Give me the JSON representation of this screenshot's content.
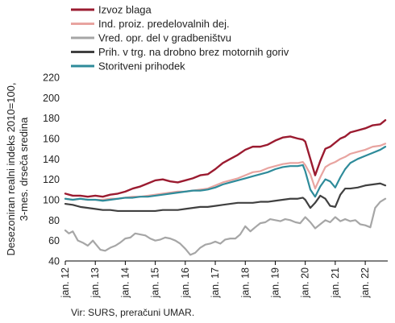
{
  "chart_data": {
    "type": "line",
    "ylabel_lines": [
      "Desezoniran realni indeks 2010=100,",
      "3-mes. drseča sredina"
    ],
    "ylim": [
      40,
      220
    ],
    "yticks": [
      40,
      60,
      80,
      100,
      120,
      140,
      160,
      180,
      200,
      220
    ],
    "xlim": [
      2012.0,
      2022.75
    ],
    "xtick_labels": [
      "jan. 12",
      "jan. 13",
      "jan. 14",
      "jan. 15",
      "jan. 16",
      "jan. 17",
      "jan. 18",
      "jan. 19",
      "jan. 20",
      "jan. 21",
      "jan. 22"
    ],
    "xtick_values": [
      2012,
      2013,
      2014,
      2015,
      2016,
      2017,
      2018,
      2019,
      2020,
      2021,
      2022
    ],
    "grid": false,
    "legend_position": "top-left, above plot",
    "source_note": "Vir: SURS, preračuni UMAR.",
    "series": [
      {
        "name": "Izvoz blaga",
        "color": "#9b1b30",
        "width": 2.4,
        "x": [
          2012.0,
          2012.25,
          2012.5,
          2012.75,
          2013.0,
          2013.25,
          2013.5,
          2013.75,
          2014.0,
          2014.25,
          2014.5,
          2014.75,
          2015.0,
          2015.25,
          2015.5,
          2015.75,
          2016.0,
          2016.25,
          2016.5,
          2016.75,
          2017.0,
          2017.25,
          2017.5,
          2017.75,
          2018.0,
          2018.25,
          2018.5,
          2018.75,
          2019.0,
          2019.25,
          2019.5,
          2019.75,
          2019.92,
          2020.0,
          2020.17,
          2020.33,
          2020.5,
          2020.67,
          2020.83,
          2021.0,
          2021.17,
          2021.33,
          2021.5,
          2021.75,
          2022.0,
          2022.25,
          2022.5,
          2022.67
        ],
        "y": [
          106,
          104,
          104,
          103,
          104,
          103,
          105,
          106,
          108,
          111,
          113,
          116,
          119,
          120,
          118,
          117,
          119,
          121,
          124,
          125,
          130,
          136,
          140,
          144,
          149,
          152,
          152,
          154,
          158,
          161,
          162,
          160,
          159,
          157,
          140,
          124,
          138,
          150,
          152,
          156,
          160,
          162,
          166,
          168,
          170,
          173,
          174,
          178
        ]
      },
      {
        "name": "Ind. proiz. predelovalnih dej.",
        "color": "#e8a4a0",
        "width": 2.2,
        "x": [
          2012.0,
          2012.25,
          2012.5,
          2012.75,
          2013.0,
          2013.25,
          2013.5,
          2013.75,
          2014.0,
          2014.25,
          2014.5,
          2014.75,
          2015.0,
          2015.25,
          2015.5,
          2015.75,
          2016.0,
          2016.25,
          2016.5,
          2016.75,
          2017.0,
          2017.25,
          2017.5,
          2017.75,
          2018.0,
          2018.25,
          2018.5,
          2018.75,
          2019.0,
          2019.25,
          2019.5,
          2019.75,
          2019.92,
          2020.0,
          2020.17,
          2020.33,
          2020.5,
          2020.67,
          2020.83,
          2021.0,
          2021.17,
          2021.33,
          2021.5,
          2021.75,
          2022.0,
          2022.25,
          2022.5,
          2022.67
        ],
        "y": [
          101,
          100,
          101,
          100,
          100,
          100,
          101,
          101,
          102,
          103,
          103,
          104,
          105,
          106,
          107,
          108,
          108,
          109,
          110,
          111,
          114,
          117,
          119,
          121,
          124,
          127,
          128,
          131,
          133,
          135,
          136,
          136,
          137,
          134,
          125,
          111,
          122,
          132,
          135,
          137,
          140,
          142,
          145,
          147,
          149,
          152,
          153,
          155
        ]
      },
      {
        "name": "Vred. opr. del v gradbeništvu",
        "color": "#a6a6a6",
        "width": 2.2,
        "x": [
          2012.0,
          2012.12,
          2012.25,
          2012.42,
          2012.58,
          2012.75,
          2012.92,
          2013.0,
          2013.17,
          2013.33,
          2013.5,
          2013.67,
          2013.83,
          2014.0,
          2014.17,
          2014.33,
          2014.5,
          2014.67,
          2014.83,
          2015.0,
          2015.17,
          2015.33,
          2015.5,
          2015.67,
          2015.83,
          2016.0,
          2016.17,
          2016.33,
          2016.5,
          2016.67,
          2016.83,
          2017.0,
          2017.17,
          2017.33,
          2017.5,
          2017.67,
          2017.83,
          2018.0,
          2018.17,
          2018.33,
          2018.5,
          2018.67,
          2018.83,
          2019.0,
          2019.17,
          2019.33,
          2019.5,
          2019.67,
          2019.83,
          2020.0,
          2020.17,
          2020.33,
          2020.5,
          2020.67,
          2020.83,
          2021.0,
          2021.17,
          2021.33,
          2021.5,
          2021.67,
          2021.83,
          2022.0,
          2022.17,
          2022.33,
          2022.5,
          2022.67
        ],
        "y": [
          70,
          67,
          69,
          60,
          58,
          55,
          60,
          57,
          51,
          50,
          53,
          55,
          58,
          62,
          63,
          67,
          66,
          65,
          62,
          60,
          61,
          63,
          62,
          60,
          57,
          52,
          46,
          48,
          53,
          56,
          57,
          59,
          57,
          61,
          62,
          62,
          66,
          74,
          69,
          73,
          77,
          78,
          81,
          80,
          79,
          81,
          80,
          78,
          77,
          83,
          78,
          72,
          76,
          80,
          78,
          83,
          79,
          81,
          79,
          80,
          76,
          75,
          73,
          92,
          98,
          101
        ]
      },
      {
        "name": "Prih. v trg. na drobno brez motornih goriv",
        "color": "#404040",
        "width": 2.2,
        "x": [
          2012.0,
          2012.25,
          2012.5,
          2012.75,
          2013.0,
          2013.25,
          2013.5,
          2013.75,
          2014.0,
          2014.25,
          2014.5,
          2014.75,
          2015.0,
          2015.25,
          2015.5,
          2015.75,
          2016.0,
          2016.25,
          2016.5,
          2016.75,
          2017.0,
          2017.25,
          2017.5,
          2017.75,
          2018.0,
          2018.25,
          2018.5,
          2018.75,
          2019.0,
          2019.25,
          2019.5,
          2019.75,
          2019.92,
          2020.0,
          2020.17,
          2020.33,
          2020.5,
          2020.67,
          2020.83,
          2021.0,
          2021.17,
          2021.33,
          2021.5,
          2021.75,
          2022.0,
          2022.25,
          2022.5,
          2022.67
        ],
        "y": [
          96,
          95,
          93,
          92,
          91,
          90,
          90,
          89,
          89,
          89,
          89,
          89,
          89,
          90,
          90,
          90,
          91,
          92,
          93,
          93,
          94,
          95,
          96,
          97,
          97,
          97,
          98,
          98,
          99,
          100,
          101,
          101,
          102,
          100,
          92,
          97,
          104,
          101,
          94,
          93,
          105,
          111,
          111,
          112,
          114,
          115,
          116,
          114
        ]
      },
      {
        "name": "Storitveni prihodek",
        "color": "#2e8b9a",
        "width": 2.2,
        "x": [
          2012.0,
          2012.25,
          2012.5,
          2012.75,
          2013.0,
          2013.25,
          2013.5,
          2013.75,
          2014.0,
          2014.25,
          2014.5,
          2014.75,
          2015.0,
          2015.25,
          2015.5,
          2015.75,
          2016.0,
          2016.25,
          2016.5,
          2016.75,
          2017.0,
          2017.25,
          2017.5,
          2017.75,
          2018.0,
          2018.25,
          2018.5,
          2018.75,
          2019.0,
          2019.25,
          2019.5,
          2019.75,
          2019.92,
          2020.0,
          2020.17,
          2020.33,
          2020.5,
          2020.67,
          2020.83,
          2021.0,
          2021.17,
          2021.33,
          2021.5,
          2021.75,
          2022.0,
          2022.25,
          2022.5,
          2022.67
        ],
        "y": [
          101,
          100,
          101,
          100,
          100,
          99,
          100,
          101,
          102,
          102,
          103,
          103,
          104,
          105,
          106,
          107,
          108,
          109,
          109,
          110,
          112,
          115,
          117,
          119,
          121,
          123,
          125,
          127,
          130,
          132,
          133,
          133,
          134,
          128,
          110,
          103,
          113,
          120,
          118,
          112,
          122,
          130,
          136,
          140,
          143,
          146,
          149,
          152
        ]
      }
    ]
  }
}
